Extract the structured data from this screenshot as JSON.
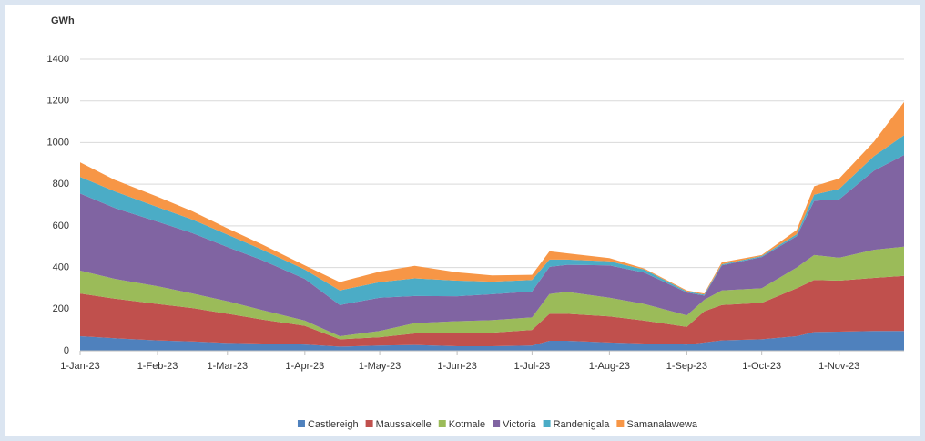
{
  "chart_data": {
    "type": "area",
    "stacked": true,
    "y_label": "GWh",
    "x": [
      "2023-01-01",
      "2023-01-15",
      "2023-02-01",
      "2023-02-15",
      "2023-03-01",
      "2023-03-15",
      "2023-04-01",
      "2023-04-15",
      "2023-05-01",
      "2023-05-15",
      "2023-06-01",
      "2023-06-15",
      "2023-07-01",
      "2023-07-08",
      "2023-07-15",
      "2023-08-01",
      "2023-08-15",
      "2023-09-01",
      "2023-09-08",
      "2023-09-15",
      "2023-10-01",
      "2023-10-15",
      "2023-10-22",
      "2023-11-01",
      "2023-11-15",
      "2023-11-27"
    ],
    "series": [
      {
        "name": "Castlereigh",
        "color": "#4f81bd",
        "values": [
          70,
          60,
          50,
          45,
          38,
          35,
          30,
          20,
          25,
          28,
          22,
          22,
          25,
          48,
          48,
          40,
          35,
          30,
          40,
          50,
          55,
          70,
          90,
          92,
          95,
          95
        ]
      },
      {
        "name": "Maussakelle",
        "color": "#c0504d",
        "values": [
          205,
          190,
          175,
          160,
          140,
          115,
          90,
          35,
          40,
          55,
          65,
          65,
          75,
          130,
          130,
          125,
          110,
          85,
          150,
          170,
          175,
          230,
          250,
          245,
          255,
          265
        ]
      },
      {
        "name": "Kotmale",
        "color": "#9bbb59",
        "values": [
          110,
          95,
          85,
          70,
          60,
          45,
          25,
          15,
          30,
          50,
          55,
          60,
          60,
          95,
          105,
          90,
          80,
          55,
          55,
          70,
          70,
          100,
          120,
          110,
          135,
          140
        ]
      },
      {
        "name": "Victoria",
        "color": "#8064a2",
        "values": [
          370,
          340,
          310,
          290,
          260,
          240,
          200,
          150,
          160,
          130,
          120,
          125,
          125,
          130,
          130,
          155,
          150,
          110,
          20,
          120,
          150,
          150,
          260,
          280,
          380,
          440
        ]
      },
      {
        "name": "Randenigala",
        "color": "#4bacc6",
        "values": [
          80,
          80,
          70,
          65,
          60,
          50,
          45,
          70,
          75,
          85,
          75,
          60,
          55,
          35,
          25,
          20,
          15,
          5,
          5,
          5,
          5,
          10,
          30,
          50,
          70,
          95
        ]
      },
      {
        "name": "Samanalawewa",
        "color": "#f79646",
        "values": [
          70,
          55,
          50,
          40,
          30,
          25,
          20,
          40,
          50,
          60,
          40,
          30,
          25,
          40,
          30,
          15,
          5,
          5,
          5,
          10,
          5,
          20,
          40,
          50,
          70,
          160
        ]
      }
    ],
    "xlim": [
      "2023-01-01",
      "2023-11-27"
    ],
    "xticks": [
      {
        "value": "2023-01-01",
        "label": "1-Jan-23"
      },
      {
        "value": "2023-02-01",
        "label": "1-Feb-23"
      },
      {
        "value": "2023-03-01",
        "label": "1-Mar-23"
      },
      {
        "value": "2023-04-01",
        "label": "1-Apr-23"
      },
      {
        "value": "2023-05-01",
        "label": "1-May-23"
      },
      {
        "value": "2023-06-01",
        "label": "1-Jun-23"
      },
      {
        "value": "2023-07-01",
        "label": "1-Jul-23"
      },
      {
        "value": "2023-08-01",
        "label": "1-Aug-23"
      },
      {
        "value": "2023-09-01",
        "label": "1-Sep-23"
      },
      {
        "value": "2023-10-01",
        "label": "1-Oct-23"
      },
      {
        "value": "2023-11-01",
        "label": "1-Nov-23"
      }
    ],
    "ylim": [
      0,
      1400
    ],
    "yticks": [
      0,
      200,
      400,
      600,
      800,
      1000,
      1200,
      1400
    ],
    "grid": true,
    "legend": "bottom"
  }
}
